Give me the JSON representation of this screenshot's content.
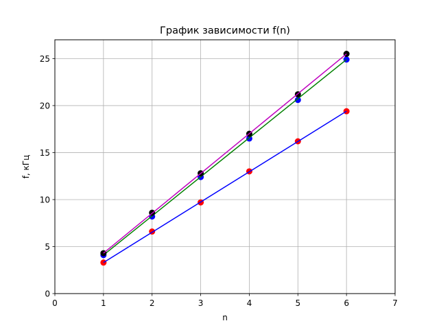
{
  "chart_data": {
    "type": "scatter",
    "title": "График зависимости f(n)",
    "xlabel": "n",
    "ylabel": "f, кГц",
    "xlim": [
      0,
      7
    ],
    "ylim": [
      0,
      27
    ],
    "grid": true,
    "xticks": [
      0,
      1,
      2,
      3,
      4,
      5,
      6,
      7
    ],
    "yticks": [
      0,
      5,
      10,
      15,
      20,
      25
    ],
    "series": [
      {
        "name": "points-red",
        "kind": "scatter",
        "color": "#ff0000",
        "x": [
          1,
          2,
          3,
          4,
          5,
          6
        ],
        "y": [
          3.3,
          6.6,
          9.7,
          13.0,
          16.2,
          19.4
        ]
      },
      {
        "name": "fit-blue",
        "kind": "line",
        "color": "#0000ff",
        "x": [
          1,
          6
        ],
        "y": [
          3.3,
          19.4
        ]
      },
      {
        "name": "points-blue",
        "kind": "scatter",
        "color": "#0000ff",
        "x": [
          1,
          2,
          3,
          4,
          5,
          6
        ],
        "y": [
          4.1,
          8.2,
          12.4,
          16.5,
          20.6,
          24.9
        ]
      },
      {
        "name": "fit-green",
        "kind": "line",
        "color": "#008000",
        "x": [
          1,
          6
        ],
        "y": [
          4.1,
          24.9
        ]
      },
      {
        "name": "points-black",
        "kind": "scatter",
        "color": "#000000",
        "x": [
          1,
          2,
          3,
          4,
          5,
          6
        ],
        "y": [
          4.3,
          8.6,
          12.8,
          17.0,
          21.2,
          25.5
        ]
      },
      {
        "name": "fit-magenta",
        "kind": "line",
        "color": "#bf00bf",
        "x": [
          1,
          6
        ],
        "y": [
          4.3,
          25.5
        ]
      }
    ]
  }
}
